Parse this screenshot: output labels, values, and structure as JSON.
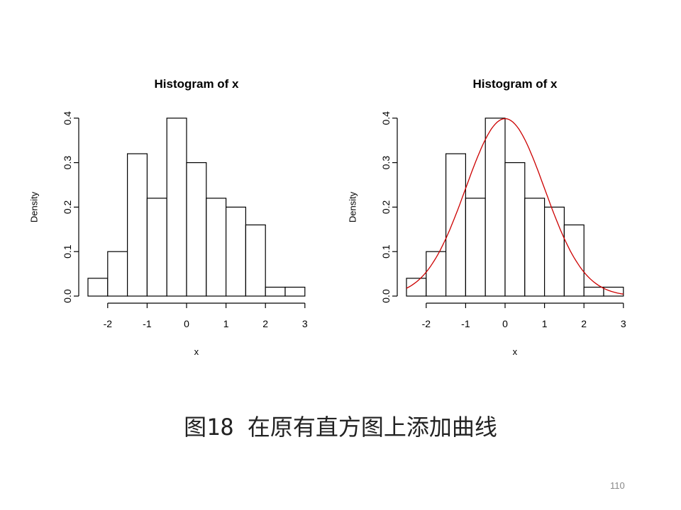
{
  "caption": "图18 在原有直方图上添加曲线",
  "page_number": "110",
  "colors": {
    "bars_stroke": "#000000",
    "bars_fill": "#ffffff",
    "curve": "#cc0000"
  },
  "chart_data": [
    {
      "type": "bar",
      "title": "Histogram of x",
      "xlabel": "x",
      "ylabel": "Density",
      "bin_edges": [
        -2.5,
        -2,
        -1.5,
        -1,
        -0.5,
        0,
        0.5,
        1,
        1.5,
        2,
        2.5,
        3
      ],
      "values": [
        0.04,
        0.1,
        0.32,
        0.22,
        0.4,
        0.3,
        0.22,
        0.2,
        0.16,
        0.02,
        0.02
      ],
      "xticks": [
        "-2",
        "-1",
        "0",
        "1",
        "2",
        "3"
      ],
      "yticks": [
        "0.0",
        "0.1",
        "0.2",
        "0.3",
        "0.4"
      ],
      "xlim": [
        -2.5,
        3
      ],
      "ylim": [
        0,
        0.4
      ],
      "grid": false
    },
    {
      "type": "bar",
      "title": "Histogram of x",
      "xlabel": "x",
      "ylabel": "Density",
      "bin_edges": [
        -2.5,
        -2,
        -1.5,
        -1,
        -0.5,
        0,
        0.5,
        1,
        1.5,
        2,
        2.5,
        3
      ],
      "values": [
        0.04,
        0.1,
        0.32,
        0.22,
        0.4,
        0.3,
        0.22,
        0.2,
        0.16,
        0.02,
        0.02
      ],
      "xticks": [
        "-2",
        "-1",
        "0",
        "1",
        "2",
        "3"
      ],
      "yticks": [
        "0.0",
        "0.1",
        "0.2",
        "0.3",
        "0.4"
      ],
      "xlim": [
        -2.5,
        3
      ],
      "ylim": [
        0,
        0.4
      ],
      "grid": false,
      "overlay_curve": {
        "type": "line",
        "function": "normal density",
        "mean": 0,
        "sd": 1,
        "color": "#cc0000"
      }
    }
  ]
}
